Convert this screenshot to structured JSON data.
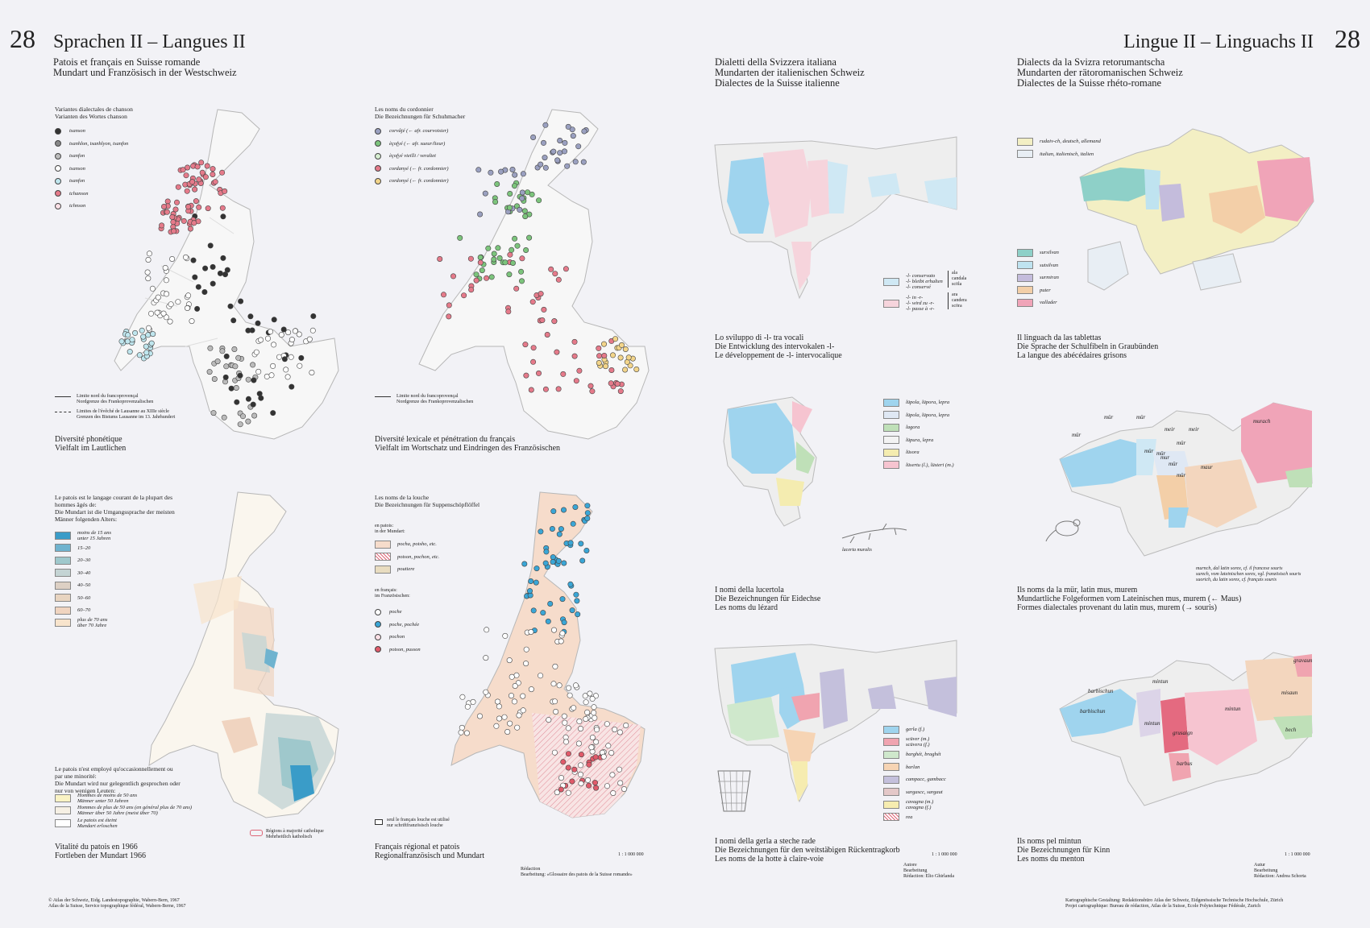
{
  "page": {
    "left_number": "28",
    "left_title": "Sprachen II – Langues II",
    "left_subtitle": "Patois et français en Suisse romande\nMundart und Französisch in der Westschweiz",
    "right_number": "28",
    "right_title": "Lingue II – Linguachs II",
    "it_subtitle": "Dialetti della Svizzera italiana\nMundarten der italienischen Schweiz\nDialectes de la Suisse italienne",
    "rm_subtitle": "Dialects da la Svizra retorumantscha\nMundarten der rätoromanischen Schweiz\nDialectes de la Suisse rhéto-romane"
  },
  "maps": {
    "chanson": {
      "legend_title": "Variantes dialectales de chanson\nVarianten des Wortes chanson",
      "legend": [
        {
          "label": "tsanson",
          "fill": "#333"
        },
        {
          "label": "tsanhlon, tsanhlyon, tsanfon",
          "fill": "#888"
        },
        {
          "label": "tsanfon",
          "fill": "#bbb"
        },
        {
          "label": "tsanson",
          "fill": "#fff"
        },
        {
          "label": "tsanfon",
          "fill": "#bfe6ee"
        },
        {
          "label": "tchanson",
          "fill": "#e57a8a"
        },
        {
          "label": "tchnson",
          "fill": "#fbe0e6"
        }
      ],
      "limits": "Limite nord du francoprovençal\nNordgrenze des Frankoprovenzalischen",
      "limits2": "Limites de l'évêché de Lausanne au XIIIe siècle\nGrenzen des Bistums Lausanne im 13. Jahrhundert",
      "caption": "Diversité phonétique\nVielfalt im Lautlichen"
    },
    "cordonnier": {
      "legend_title": "Les noms du cordonnier\nDie Bezeichnungen für Schuhmacher",
      "legend": [
        {
          "label": "corvâjé (← afr. courvoisier)",
          "fill": "#9aa0c0"
        },
        {
          "label": "èçofyé (← afr. sueur/lieur)",
          "fill": "#7cc47c"
        },
        {
          "label": "èçofyé vieilli / veraltet",
          "fill": "#d6eed0"
        },
        {
          "label": "cordanyé (← fr. cordonnier)",
          "fill": "#e57a8a"
        },
        {
          "label": "cordonyé (← fr. cordonnier)",
          "fill": "#f3d58a"
        }
      ],
      "limits": "Limite nord du francoprovençal\nNordgrenze des Frankoprovenzalischen",
      "caption": "Diversité lexicale et pénétration du français\nVielfalt im Wortschatz und Eindringen des Französischen"
    },
    "vitalite": {
      "legend_title": "Le patois est le langage courant de la plupart des\nhommes âgés de:\nDie Mundart ist die Umgangssprache der meisten\nMänner folgenden Alters:",
      "legend": [
        {
          "label": "moins de 15 ans\nunter 15 Jahren",
          "fill": "#3a9cc8"
        },
        {
          "label": "15–20",
          "fill": "#6fb3cf"
        },
        {
          "label": "20–30",
          "fill": "#9fc8cc"
        },
        {
          "label": "30–40",
          "fill": "#c4d4d4"
        },
        {
          "label": "40–50",
          "fill": "#ddd0c4"
        },
        {
          "label": "50–60",
          "fill": "#e8d4c0"
        },
        {
          "label": "60–70",
          "fill": "#f0d4c0"
        },
        {
          "label": "plus de 70 ans\nüber 70 Jahre",
          "fill": "#f8e4cc"
        }
      ],
      "minority_title": "Le patois n'est employé qu'occasionnellement ou\npar une minorité:\nDie Mundart wird nur gelegentlich gesprochen oder\nnur von wenigen Leuten:",
      "minority": [
        {
          "label": "Hommes de moins de 50 ans\nMänner unter 50 Jahren",
          "fill": "#faf3c4"
        },
        {
          "label": "Hommes de plus de 50 ans (en général plus de 70 ans)\nMänner über 50 Jahre (meist über 70)",
          "fill": "#f6f0e4"
        },
        {
          "label": "Le patois est éteint\nMundart erloschen",
          "fill": "#ffffff"
        }
      ],
      "catholic": "Régions à majorité catholique\nMehrheitlich katholisch",
      "caption": "Vitalité du patois en 1966\nFortleben der Mundart 1966"
    },
    "louche": {
      "legend_title": "Les noms de la louche\nDie Bezeichnungen für Suppenschöpflöffel",
      "group1": "en patois:\nin der Mundart:",
      "legend1": [
        {
          "label": "pocha, potsho, etc.",
          "fill": "#f6dccb"
        },
        {
          "label": "potson, pochon, etc.",
          "fill": "hatch"
        },
        {
          "label": "poutiere",
          "fill": "#e8dcc0"
        }
      ],
      "group2": "en français:\nim Französischen:",
      "legend2": [
        {
          "label": "poche",
          "fill": "#ffffff"
        },
        {
          "label": "poche, pochée",
          "fill": "#3aa6d6"
        },
        {
          "label": "pochon",
          "fill": "#fbe0e6"
        },
        {
          "label": "potson, pusson",
          "fill": "#e05a6a"
        }
      ],
      "note": "seul le français louche est utilisé\nnur schriftfranzösisch louche",
      "caption": "Français régional et patois\nRegionalfranzösisch und Mundart",
      "scale": "1 : 1 000 000",
      "credit": "Rédaction\nBearbeitung: «Glossaire des patois de la Suisse romande»"
    },
    "l_intervocal": {
      "legend": [
        {
          "label": "-l- conservato\n-l- bleibt erhalten\n-l- conservé",
          "fill": "#cfe8f4"
        },
        {
          "label": "-l- in -r-\n-l- wird zu -r-\n-l- passe à -r-",
          "fill": "#f6d4dc"
        }
      ],
      "brace1": "ala\ncandala\nscöla",
      "brace2": "ara\ncandera\nscöra",
      "caption": "Lo sviluppo di -l- tra vocali\nDie Entwicklung des intervokalen -l-\nLe développement de -l- intervocalique"
    },
    "tablettas": {
      "legend": [
        {
          "label": "rudaiv-ch, deutsch, allemand",
          "fill": "#f3efc4"
        },
        {
          "label": "italian, italienisch, italien",
          "fill": "#e8eef4"
        }
      ],
      "legend2": [
        {
          "label": "sursilvan",
          "fill": "#8ed0c8"
        },
        {
          "label": "sutsilvan",
          "fill": "#bfe3f0"
        },
        {
          "label": "surmiran",
          "fill": "#c4bcdc"
        },
        {
          "label": "puter",
          "fill": "#f3cfa8"
        },
        {
          "label": "vallader",
          "fill": "#f0a4b8"
        }
      ],
      "caption": "Il linguach da las tablettas\nDie Sprache der Schulfibeln in Graubünden\nLa langue des abécédaires grisons"
    },
    "lucertola": {
      "legend": [
        {
          "label": "lüpola, lüpora, lepra",
          "fill": "#9fd4ee"
        },
        {
          "label": "lüpola, lüpora, lepra",
          "fill": "#dfe8f4"
        },
        {
          "label": "lagora",
          "fill": "#bfe0b8"
        },
        {
          "label": "lüpura, lepra",
          "fill": "#f3f3f3"
        },
        {
          "label": "lüsora",
          "fill": "#f4ecb0"
        },
        {
          "label": "lüsertu (l.), lüsteri (m.)",
          "fill": "#f6c4d0"
        }
      ],
      "figure": "lacerta muralis",
      "caption": "I nomi della lucertola\nDie Bezeichnungen für Eidechse\nLes noms du lézard"
    },
    "mur": {
      "labels": [
        "mür",
        "mür",
        "mür",
        "mür",
        "meir",
        "meir",
        "mür",
        "mür",
        "mur",
        "mür",
        "mür",
        "maur",
        "murach"
      ],
      "note": "murnch, dal latin sorex, cf. il francese souris\nsurech, vom lateinischen sorex, vgl. französisch souris\nsuorich, du latin sorex, cf. français souris",
      "caption": "Ils noms da la mür, latin mus, murem\nMundartliche Folgeformen vom Lateinischen mus, murem (← Maus)\nFormes dialectales provenant du latin mus, murem (→ souris)"
    },
    "gerla": {
      "legend": [
        {
          "label": "gerla (f.)",
          "fill": "#9fd4ee"
        },
        {
          "label": "scüver (m.)\nscüvera (f.)",
          "fill": "#f0a4b0"
        },
        {
          "label": "barghét, braghét",
          "fill": "#cfe8cc"
        },
        {
          "label": "barlan",
          "fill": "#f6d4b4"
        },
        {
          "label": "campacc, gambacc",
          "fill": "#c4c0dc"
        },
        {
          "label": "sargascc, sargaut",
          "fill": "#e4c8c8"
        },
        {
          "label": "cavagna (m.)\ncavagna (f.)",
          "fill": "#f6ecb0"
        },
        {
          "label": "rea",
          "fill": "hatch"
        }
      ],
      "caption": "I nomi della gerla a steche rade\nDie Bezeichnungen für den weitstäbigen Rückentragkorb\nLes noms de la hotte à claire-voie",
      "scale": "1 : 1 000 000",
      "credit": "Autore\nBearbeitung\nRédaction: Elio Ghirlanda"
    },
    "mintun": {
      "labels": [
        "gravaun",
        "barbischun",
        "barbischun",
        "mintun",
        "mintun",
        "mintun",
        "grusaign",
        "misaun",
        "bech",
        "barbus"
      ],
      "caption": "Ils noms pel mintun\nDie Bezeichnungen für Kinn\nLes noms du menton",
      "scale": "1 : 1 000 000",
      "credit": "Autur\nBearbeitung\nRédaction: Andrea Schorta"
    }
  },
  "footer": {
    "left": "© Atlas der Schweiz,    Eidg. Landestopographie, Wabern-Bern, 1967\n   Atlas de la Suisse,    Service topographique fédéral, Wabern-Berne, 1967",
    "right": "Kartographische Gestaltung: Redaktionsbüro Atlas der Schweiz, Eidgenössische Technische Hochschule, Zürich\nProjet cartographique: Bureau de rédaction, Atlas de la Suisse, Ecole Polytechnique Fédérale, Zurich"
  }
}
